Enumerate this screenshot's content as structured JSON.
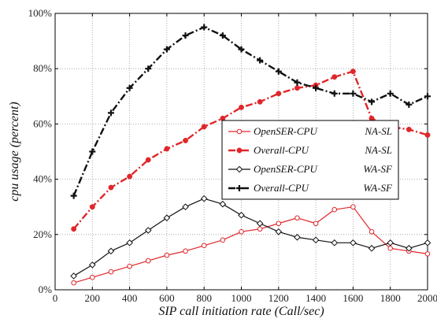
{
  "chart_data": {
    "type": "line",
    "title": "",
    "xlabel": "SIP call initiation rate (Call/sec)",
    "ylabel": "cpu usage (percent)",
    "xlim": [
      0,
      2000
    ],
    "ylim": [
      0,
      100
    ],
    "xticks": [
      0,
      200,
      400,
      600,
      800,
      1000,
      1200,
      1400,
      1600,
      1800,
      2000
    ],
    "yticks": [
      0,
      20,
      40,
      60,
      80,
      100
    ],
    "ytick_labels": [
      "0%",
      "20%",
      "40%",
      "60%",
      "80%",
      "100%"
    ],
    "grid": true,
    "legend_position": "center-right",
    "series": [
      {
        "name": "OpenSER-CPU",
        "tag": "NA-SL",
        "color": "#e0262b",
        "line": "solid",
        "marker": "circle",
        "x": [
          100,
          200,
          300,
          400,
          500,
          600,
          700,
          800,
          900,
          1000,
          1100,
          1200,
          1300,
          1400,
          1500,
          1600,
          1700,
          1800,
          1900,
          2000
        ],
        "y": [
          2.5,
          4.5,
          6.5,
          8.5,
          10.5,
          12.5,
          14,
          16,
          18,
          21,
          22,
          24,
          26,
          24,
          29,
          30,
          21,
          15,
          14,
          13
        ]
      },
      {
        "name": "Overall-CPU",
        "tag": "NA-SL",
        "color": "#e0262b",
        "line": "dashdot",
        "marker": "dot",
        "x": [
          100,
          200,
          300,
          400,
          500,
          600,
          700,
          800,
          900,
          1000,
          1100,
          1200,
          1300,
          1400,
          1500,
          1600,
          1700,
          1800,
          1900,
          2000
        ],
        "y": [
          22,
          30,
          37,
          41,
          47,
          51,
          54,
          59,
          62,
          66,
          68,
          71,
          73,
          74,
          77,
          79,
          62,
          59,
          58,
          56
        ]
      },
      {
        "name": "OpenSER-CPU",
        "tag": "WA-SF",
        "color": "#111111",
        "line": "solid",
        "marker": "diamond",
        "x": [
          100,
          200,
          300,
          400,
          500,
          600,
          700,
          800,
          900,
          1000,
          1100,
          1200,
          1300,
          1400,
          1500,
          1600,
          1700,
          1800,
          1900,
          2000
        ],
        "y": [
          5,
          9,
          14,
          17,
          21.5,
          26,
          30,
          33,
          31,
          27,
          24,
          21,
          19,
          18,
          17,
          17,
          15,
          17,
          15,
          17
        ]
      },
      {
        "name": "Overall-CPU",
        "tag": "WA-SF",
        "color": "#111111",
        "line": "dashdot",
        "marker": "plus",
        "x": [
          100,
          200,
          300,
          400,
          500,
          600,
          700,
          800,
          900,
          1000,
          1100,
          1200,
          1300,
          1400,
          1500,
          1600,
          1700,
          1800,
          1900,
          2000
        ],
        "y": [
          34,
          50,
          64,
          73,
          80,
          87,
          92,
          95,
          92,
          87,
          83,
          79,
          75,
          73,
          71,
          71,
          68,
          71,
          67,
          70
        ]
      }
    ]
  }
}
